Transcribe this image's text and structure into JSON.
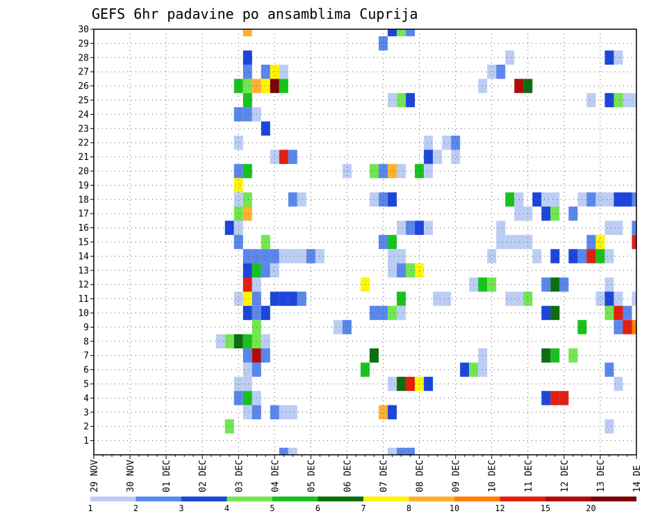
{
  "chart_data": {
    "type": "heatmap",
    "title": "GEFS 6hr padavine po ansamblima Cuprija",
    "xlabel": "",
    "ylabel": "",
    "x_ticks": [
      "29 NOV",
      "30 NOV",
      "01 DEC",
      "02 DEC",
      "03 DEC",
      "04 DEC",
      "05 DEC",
      "06 DEC",
      "07 DEC",
      "08 DEC",
      "09 DEC",
      "10 DEC",
      "11 DEC",
      "12 DEC",
      "13 DEC",
      "14 DE"
    ],
    "y_ticks": [
      "1",
      "2",
      "3",
      "4",
      "5",
      "6",
      "7",
      "8",
      "9",
      "10",
      "11",
      "12",
      "13",
      "14",
      "15",
      "16",
      "17",
      "18",
      "19",
      "20",
      "21",
      "22",
      "23",
      "24",
      "25",
      "26",
      "27",
      "28",
      "29",
      "30"
    ],
    "x_range": [
      "29 NOV 00",
      "14 DEC 00"
    ],
    "x_step_hours": 6,
    "y_range": [
      0,
      30
    ],
    "grid": true,
    "colorbar": {
      "placement": "bottom",
      "tick_labels": [
        "1",
        "2",
        "3",
        "4",
        "5",
        "6",
        "7",
        "8",
        "10",
        "12",
        "15",
        "20"
      ],
      "levels": [
        1,
        2,
        3,
        4,
        5,
        6,
        7,
        8,
        10,
        12,
        15,
        20
      ],
      "colors": [
        "#bccdf5",
        "#5a87eb",
        "#1c46db",
        "#72e650",
        "#18c21e",
        "#0b6e0f",
        "#fff500",
        "#ffb030",
        "#ff7f00",
        "#e1200f",
        "#b10c0c",
        "#7a0202"
      ]
    },
    "cells": [
      [
        30,
        17,
        7
      ],
      [
        30,
        33,
        2
      ],
      [
        30,
        34,
        3
      ],
      [
        30,
        35,
        1
      ],
      [
        29,
        32,
        1
      ],
      [
        28,
        17,
        2
      ],
      [
        28,
        46,
        0
      ],
      [
        28,
        57,
        2
      ],
      [
        28,
        58,
        0
      ],
      [
        27,
        17,
        1
      ],
      [
        27,
        19,
        1
      ],
      [
        27,
        20,
        6
      ],
      [
        27,
        21,
        0
      ],
      [
        27,
        44,
        0
      ],
      [
        27,
        45,
        1
      ],
      [
        26,
        16,
        4
      ],
      [
        26,
        17,
        3
      ],
      [
        26,
        18,
        7
      ],
      [
        26,
        19,
        6
      ],
      [
        26,
        20,
        11
      ],
      [
        26,
        21,
        4
      ],
      [
        26,
        43,
        0
      ],
      [
        26,
        47,
        10
      ],
      [
        26,
        48,
        5
      ],
      [
        25,
        17,
        4
      ],
      [
        25,
        33,
        0
      ],
      [
        25,
        34,
        3
      ],
      [
        25,
        35,
        2
      ],
      [
        25,
        55,
        0
      ],
      [
        25,
        57,
        2
      ],
      [
        25,
        58,
        3
      ],
      [
        25,
        59,
        0
      ],
      [
        25,
        60,
        0
      ],
      [
        24,
        16,
        1
      ],
      [
        24,
        17,
        1
      ],
      [
        24,
        18,
        0
      ],
      [
        23,
        19,
        2
      ],
      [
        22,
        16,
        0
      ],
      [
        22,
        37,
        0
      ],
      [
        22,
        39,
        0
      ],
      [
        22,
        40,
        1
      ],
      [
        21,
        20,
        0
      ],
      [
        21,
        21,
        9
      ],
      [
        21,
        22,
        1
      ],
      [
        21,
        37,
        2
      ],
      [
        21,
        38,
        0
      ],
      [
        21,
        40,
        0
      ],
      [
        20,
        16,
        1
      ],
      [
        20,
        17,
        4
      ],
      [
        20,
        28,
        0
      ],
      [
        20,
        31,
        3
      ],
      [
        20,
        32,
        1
      ],
      [
        20,
        33,
        7
      ],
      [
        20,
        34,
        0
      ],
      [
        20,
        36,
        4
      ],
      [
        20,
        37,
        0
      ],
      [
        19,
        16,
        6
      ],
      [
        18,
        16,
        0
      ],
      [
        18,
        17,
        3
      ],
      [
        18,
        22,
        1
      ],
      [
        18,
        23,
        0
      ],
      [
        18,
        31,
        0
      ],
      [
        18,
        32,
        1
      ],
      [
        18,
        33,
        2
      ],
      [
        18,
        46,
        4
      ],
      [
        18,
        47,
        0
      ],
      [
        18,
        49,
        2
      ],
      [
        18,
        50,
        0
      ],
      [
        18,
        51,
        0
      ],
      [
        18,
        54,
        0
      ],
      [
        18,
        55,
        1
      ],
      [
        18,
        56,
        0
      ],
      [
        18,
        57,
        0
      ],
      [
        18,
        58,
        2
      ],
      [
        18,
        59,
        2
      ],
      [
        18,
        60,
        1
      ],
      [
        17,
        16,
        3
      ],
      [
        17,
        17,
        7
      ],
      [
        17,
        47,
        0
      ],
      [
        17,
        48,
        0
      ],
      [
        17,
        50,
        2
      ],
      [
        17,
        51,
        3
      ],
      [
        17,
        53,
        1
      ],
      [
        16,
        15,
        2
      ],
      [
        16,
        16,
        0
      ],
      [
        16,
        34,
        0
      ],
      [
        16,
        35,
        1
      ],
      [
        16,
        36,
        2
      ],
      [
        16,
        37,
        0
      ],
      [
        16,
        45,
        0
      ],
      [
        16,
        57,
        0
      ],
      [
        16,
        58,
        0
      ],
      [
        16,
        60,
        1
      ],
      [
        15,
        16,
        1
      ],
      [
        15,
        19,
        3
      ],
      [
        15,
        32,
        1
      ],
      [
        15,
        33,
        4
      ],
      [
        15,
        45,
        0
      ],
      [
        15,
        46,
        0
      ],
      [
        15,
        47,
        0
      ],
      [
        15,
        48,
        0
      ],
      [
        15,
        55,
        1
      ],
      [
        15,
        56,
        6
      ],
      [
        15,
        60,
        9
      ],
      [
        14,
        17,
        1
      ],
      [
        14,
        18,
        1
      ],
      [
        14,
        19,
        1
      ],
      [
        14,
        20,
        1
      ],
      [
        14,
        21,
        0
      ],
      [
        14,
        22,
        0
      ],
      [
        14,
        23,
        0
      ],
      [
        14,
        24,
        1
      ],
      [
        14,
        25,
        0
      ],
      [
        14,
        33,
        0
      ],
      [
        14,
        34,
        0
      ],
      [
        14,
        44,
        0
      ],
      [
        14,
        49,
        0
      ],
      [
        14,
        51,
        2
      ],
      [
        14,
        53,
        2
      ],
      [
        14,
        54,
        1
      ],
      [
        14,
        55,
        9
      ],
      [
        14,
        56,
        4
      ],
      [
        14,
        57,
        0
      ],
      [
        13,
        17,
        2
      ],
      [
        13,
        18,
        4
      ],
      [
        13,
        19,
        1
      ],
      [
        13,
        20,
        0
      ],
      [
        13,
        33,
        0
      ],
      [
        13,
        34,
        1
      ],
      [
        13,
        35,
        3
      ],
      [
        13,
        36,
        6
      ],
      [
        12,
        17,
        9
      ],
      [
        12,
        18,
        0
      ],
      [
        12,
        30,
        6
      ],
      [
        12,
        42,
        0
      ],
      [
        12,
        43,
        4
      ],
      [
        12,
        44,
        3
      ],
      [
        12,
        50,
        1
      ],
      [
        12,
        51,
        5
      ],
      [
        12,
        52,
        1
      ],
      [
        12,
        57,
        0
      ],
      [
        11,
        16,
        0
      ],
      [
        11,
        17,
        6
      ],
      [
        11,
        18,
        1
      ],
      [
        11,
        20,
        2
      ],
      [
        11,
        21,
        2
      ],
      [
        11,
        22,
        2
      ],
      [
        11,
        23,
        1
      ],
      [
        11,
        34,
        4
      ],
      [
        11,
        38,
        0
      ],
      [
        11,
        39,
        0
      ],
      [
        11,
        46,
        0
      ],
      [
        11,
        47,
        0
      ],
      [
        11,
        48,
        3
      ],
      [
        11,
        56,
        0
      ],
      [
        11,
        57,
        2
      ],
      [
        11,
        58,
        0
      ],
      [
        11,
        60,
        0
      ],
      [
        10,
        17,
        2
      ],
      [
        10,
        18,
        1
      ],
      [
        10,
        19,
        2
      ],
      [
        10,
        31,
        1
      ],
      [
        10,
        32,
        1
      ],
      [
        10,
        33,
        3
      ],
      [
        10,
        34,
        0
      ],
      [
        10,
        50,
        2
      ],
      [
        10,
        51,
        5
      ],
      [
        10,
        57,
        3
      ],
      [
        10,
        58,
        9
      ],
      [
        10,
        59,
        1
      ],
      [
        9,
        18,
        3
      ],
      [
        9,
        27,
        0
      ],
      [
        9,
        28,
        1
      ],
      [
        9,
        54,
        4
      ],
      [
        9,
        58,
        1
      ],
      [
        9,
        59,
        9
      ],
      [
        9,
        60,
        8
      ],
      [
        8,
        14,
        0
      ],
      [
        8,
        15,
        3
      ],
      [
        8,
        16,
        5
      ],
      [
        8,
        17,
        4
      ],
      [
        8,
        18,
        3
      ],
      [
        8,
        19,
        0
      ],
      [
        7,
        17,
        1
      ],
      [
        7,
        18,
        10
      ],
      [
        7,
        19,
        1
      ],
      [
        7,
        31,
        5
      ],
      [
        7,
        43,
        0
      ],
      [
        7,
        50,
        5
      ],
      [
        7,
        51,
        4
      ],
      [
        7,
        53,
        3
      ],
      [
        6,
        17,
        0
      ],
      [
        6,
        18,
        1
      ],
      [
        6,
        30,
        4
      ],
      [
        6,
        41,
        2
      ],
      [
        6,
        42,
        3
      ],
      [
        6,
        43,
        0
      ],
      [
        6,
        57,
        1
      ],
      [
        5,
        16,
        0
      ],
      [
        5,
        17,
        0
      ],
      [
        5,
        33,
        0
      ],
      [
        5,
        34,
        5
      ],
      [
        5,
        35,
        9
      ],
      [
        5,
        36,
        6
      ],
      [
        5,
        37,
        2
      ],
      [
        5,
        58,
        0
      ],
      [
        4,
        16,
        1
      ],
      [
        4,
        17,
        4
      ],
      [
        4,
        18,
        0
      ],
      [
        4,
        50,
        2
      ],
      [
        4,
        51,
        9
      ],
      [
        4,
        52,
        9
      ],
      [
        3,
        17,
        0
      ],
      [
        3,
        18,
        1
      ],
      [
        3,
        20,
        1
      ],
      [
        3,
        21,
        0
      ],
      [
        3,
        22,
        0
      ],
      [
        3,
        32,
        7
      ],
      [
        3,
        33,
        2
      ],
      [
        2,
        15,
        3
      ],
      [
        2,
        57,
        0
      ],
      [
        0,
        21,
        1
      ],
      [
        0,
        22,
        0
      ],
      [
        0,
        33,
        0
      ],
      [
        0,
        34,
        1
      ],
      [
        0,
        35,
        1
      ]
    ]
  }
}
